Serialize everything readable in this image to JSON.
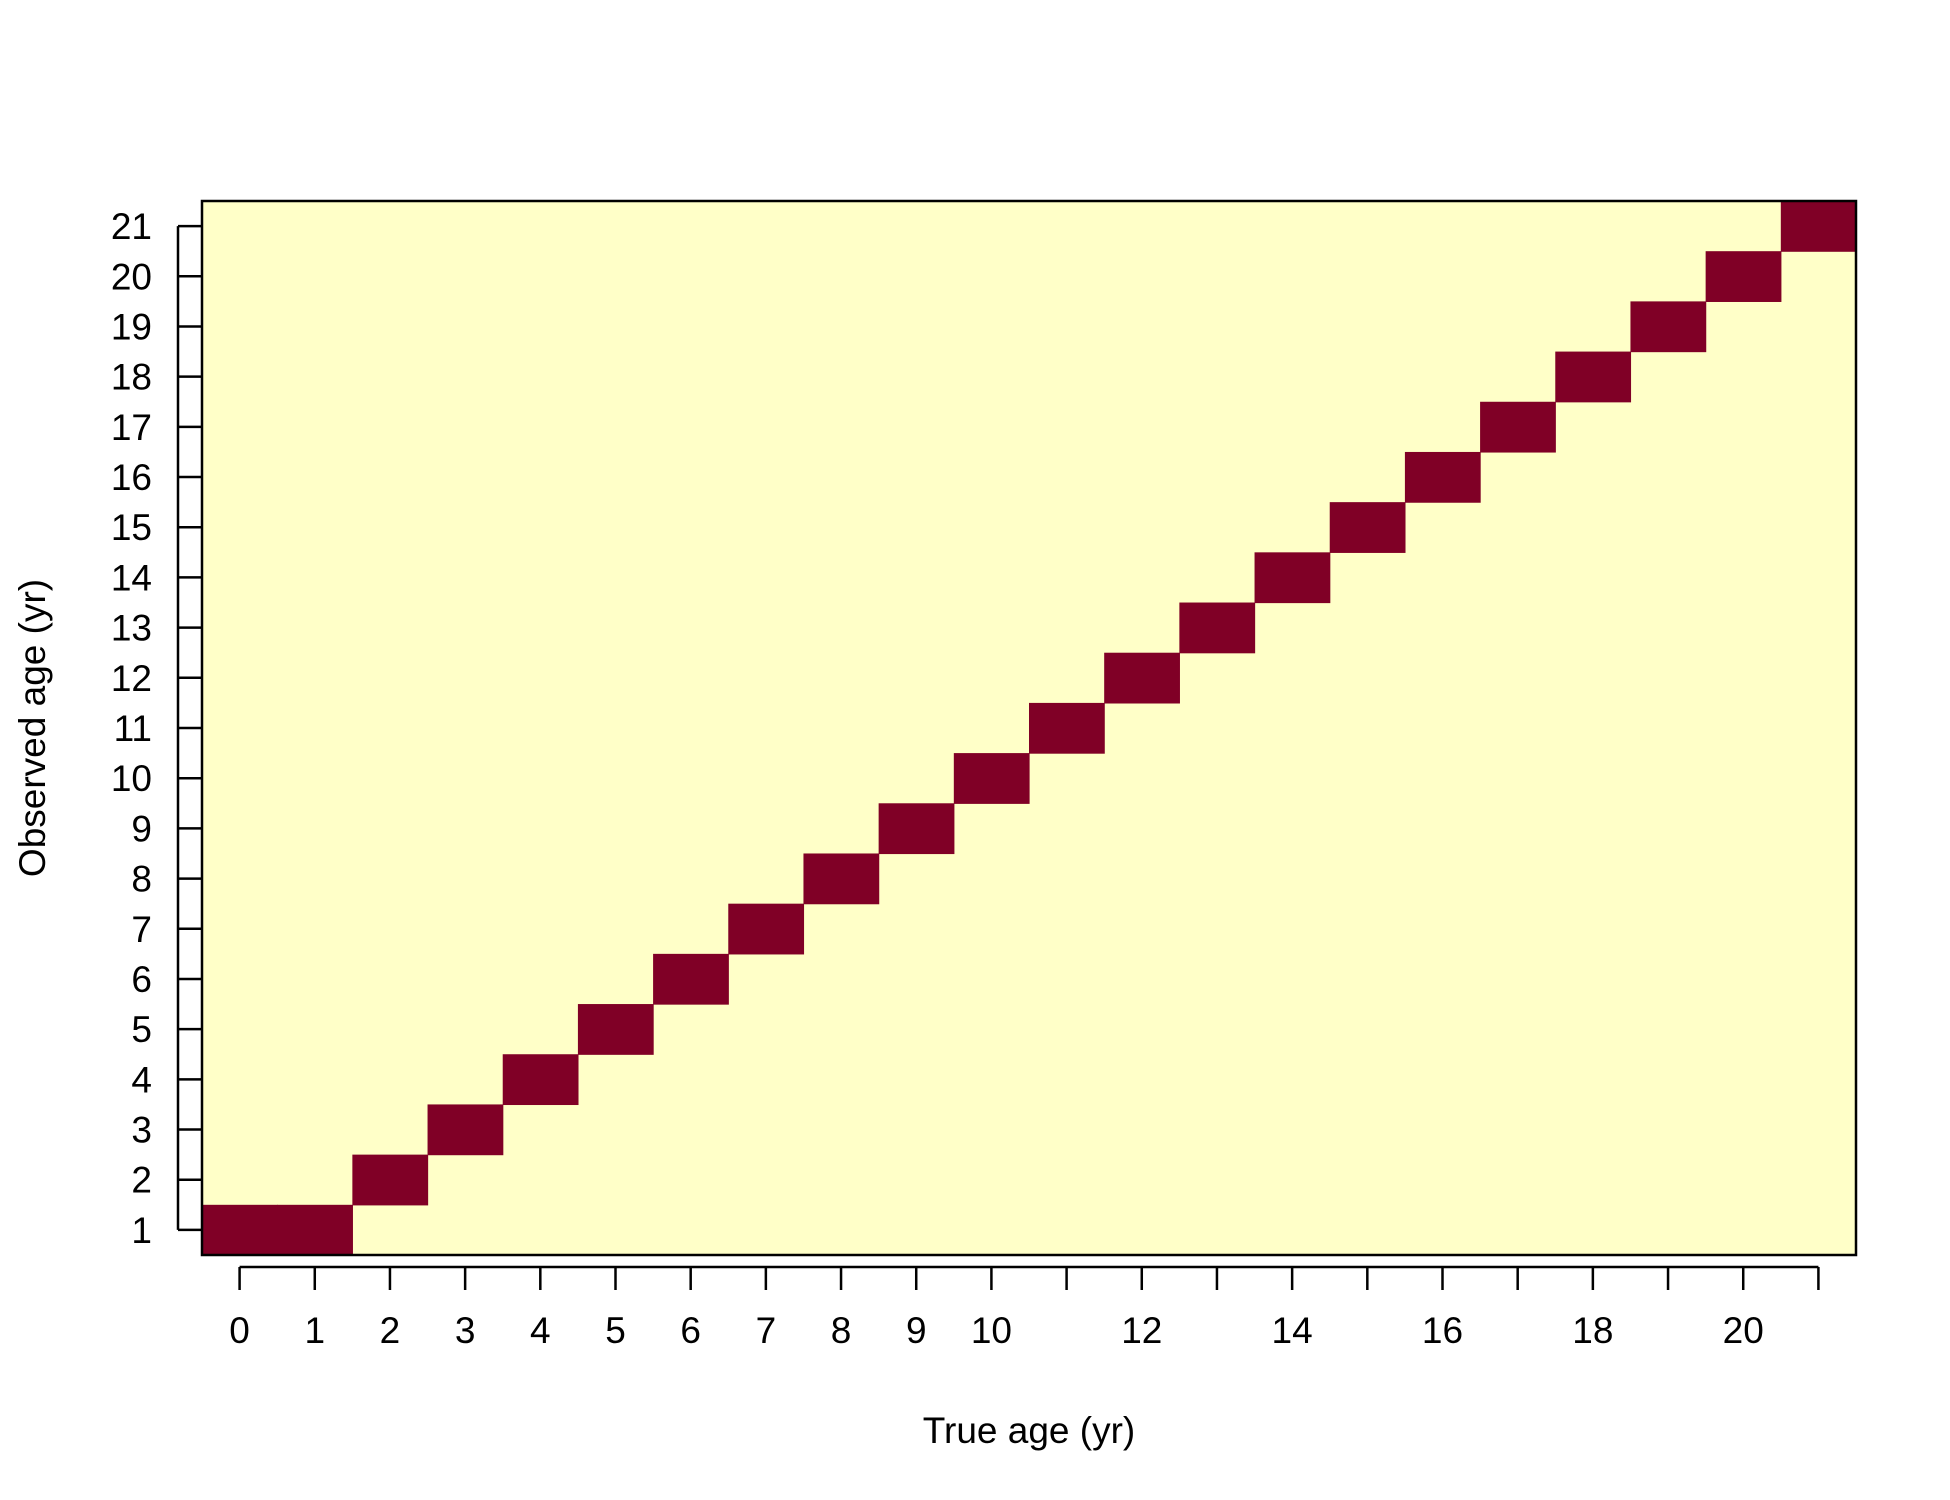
{
  "chart_data": {
    "type": "heatmap",
    "title": "",
    "xlabel": "True age (yr)",
    "ylabel": "Observed age (yr)",
    "x_categories": [
      0,
      1,
      2,
      3,
      4,
      5,
      6,
      7,
      8,
      9,
      10,
      11,
      12,
      13,
      14,
      15,
      16,
      17,
      18,
      19,
      20,
      21
    ],
    "y_categories": [
      1,
      2,
      3,
      4,
      5,
      6,
      7,
      8,
      9,
      10,
      11,
      12,
      13,
      14,
      15,
      16,
      17,
      18,
      19,
      20,
      21
    ],
    "x_tick_labels": [
      "0",
      "1",
      "2",
      "3",
      "4",
      "5",
      "6",
      "7",
      "8",
      "9",
      "10",
      "",
      "12",
      "",
      "14",
      "",
      "16",
      "",
      "18",
      "",
      "20",
      ""
    ],
    "y_tick_labels": [
      "1",
      "2",
      "3",
      "4",
      "5",
      "6",
      "7",
      "8",
      "9",
      "10",
      "11",
      "12",
      "13",
      "14",
      "15",
      "16",
      "17",
      "18",
      "19",
      "20",
      "21"
    ],
    "cells": [
      {
        "x": 0,
        "y": 1
      },
      {
        "x": 1,
        "y": 1
      },
      {
        "x": 2,
        "y": 2
      },
      {
        "x": 3,
        "y": 3
      },
      {
        "x": 4,
        "y": 4
      },
      {
        "x": 5,
        "y": 5
      },
      {
        "x": 6,
        "y": 6
      },
      {
        "x": 7,
        "y": 7
      },
      {
        "x": 8,
        "y": 8
      },
      {
        "x": 9,
        "y": 9
      },
      {
        "x": 10,
        "y": 10
      },
      {
        "x": 11,
        "y": 11
      },
      {
        "x": 12,
        "y": 12
      },
      {
        "x": 13,
        "y": 13
      },
      {
        "x": 14,
        "y": 14
      },
      {
        "x": 15,
        "y": 15
      },
      {
        "x": 16,
        "y": 16
      },
      {
        "x": 17,
        "y": 17
      },
      {
        "x": 18,
        "y": 18
      },
      {
        "x": 19,
        "y": 19
      },
      {
        "x": 20,
        "y": 20
      },
      {
        "x": 21,
        "y": 21
      }
    ],
    "colors": {
      "background": "#FFFFC8",
      "cell": "#800026",
      "axis": "#000000"
    },
    "grid": false,
    "legend": "none"
  }
}
